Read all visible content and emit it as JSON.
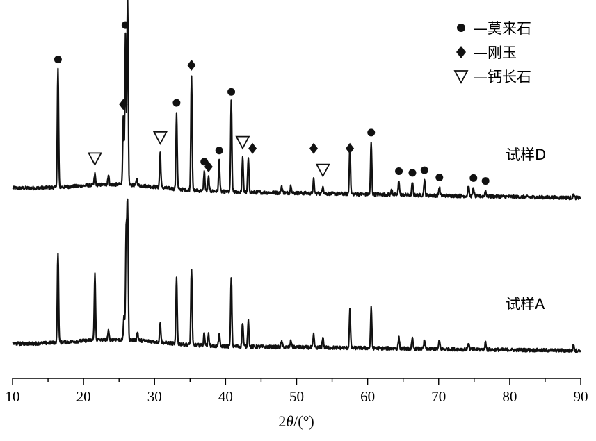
{
  "chart_data": {
    "type": "line",
    "xlabel_prefix": "2",
    "xlabel_var": "θ",
    "xlabel_unit": "/(°)",
    "xlim": [
      10,
      90
    ],
    "x_ticks": [
      10,
      20,
      30,
      40,
      50,
      60,
      70,
      80,
      90
    ],
    "y_axis_visible": false,
    "legend_position": "top-right",
    "legend": [
      {
        "marker": "circle",
        "label": "—莫来石"
      },
      {
        "marker": "diamond",
        "label": "—刚玉"
      },
      {
        "marker": "triangle-down-open",
        "label": "—钙长石"
      }
    ],
    "series": [
      {
        "name": "试样D",
        "baseline": 72,
        "peaks": [
          [
            16.4,
            170
          ],
          [
            21.6,
            16
          ],
          [
            23.5,
            14
          ],
          [
            25.6,
            100
          ],
          [
            25.9,
            215
          ],
          [
            26.2,
            270
          ],
          [
            27.5,
            10
          ],
          [
            30.8,
            50
          ],
          [
            33.1,
            110
          ],
          [
            35.2,
            165
          ],
          [
            37.0,
            28
          ],
          [
            37.6,
            20
          ],
          [
            39.1,
            45
          ],
          [
            40.8,
            130
          ],
          [
            42.4,
            50
          ],
          [
            43.2,
            48
          ],
          [
            47.9,
            10
          ],
          [
            49.2,
            12
          ],
          [
            52.4,
            20
          ],
          [
            53.7,
            12
          ],
          [
            57.5,
            70
          ],
          [
            60.5,
            75
          ],
          [
            63.4,
            8
          ],
          [
            64.4,
            20
          ],
          [
            66.3,
            18
          ],
          [
            68.0,
            22
          ],
          [
            70.1,
            12
          ],
          [
            74.2,
            14
          ],
          [
            74.9,
            12
          ],
          [
            76.6,
            8
          ],
          [
            89.0,
            5
          ]
        ],
        "phase_markers": {
          "mullite": [
            16.4,
            25.9,
            26.2,
            33.1,
            37.0,
            39.1,
            40.8,
            60.5,
            64.4,
            66.3,
            68.0,
            70.1,
            74.9,
            76.6
          ],
          "corundum": [
            25.6,
            35.2,
            37.6,
            43.4,
            52.4,
            57.5
          ],
          "anorthite": [
            21.6,
            30.8,
            42.4,
            53.7
          ]
        }
      },
      {
        "name": "试样A",
        "baseline": 20,
        "peaks": [
          [
            16.4,
            130
          ],
          [
            21.6,
            95
          ],
          [
            23.5,
            12
          ],
          [
            25.7,
            35
          ],
          [
            26.0,
            155
          ],
          [
            26.2,
            195
          ],
          [
            27.6,
            12
          ],
          [
            30.8,
            30
          ],
          [
            33.1,
            95
          ],
          [
            35.2,
            110
          ],
          [
            37.0,
            18
          ],
          [
            37.6,
            17
          ],
          [
            39.1,
            18
          ],
          [
            40.8,
            100
          ],
          [
            42.4,
            35
          ],
          [
            43.2,
            38
          ],
          [
            47.9,
            8
          ],
          [
            49.2,
            10
          ],
          [
            52.4,
            18
          ],
          [
            53.7,
            15
          ],
          [
            57.5,
            55
          ],
          [
            60.5,
            58
          ],
          [
            64.4,
            15
          ],
          [
            66.3,
            14
          ],
          [
            68.0,
            12
          ],
          [
            70.1,
            12
          ],
          [
            74.2,
            10
          ],
          [
            76.6,
            10
          ],
          [
            89.0,
            10
          ]
        ]
      }
    ]
  }
}
